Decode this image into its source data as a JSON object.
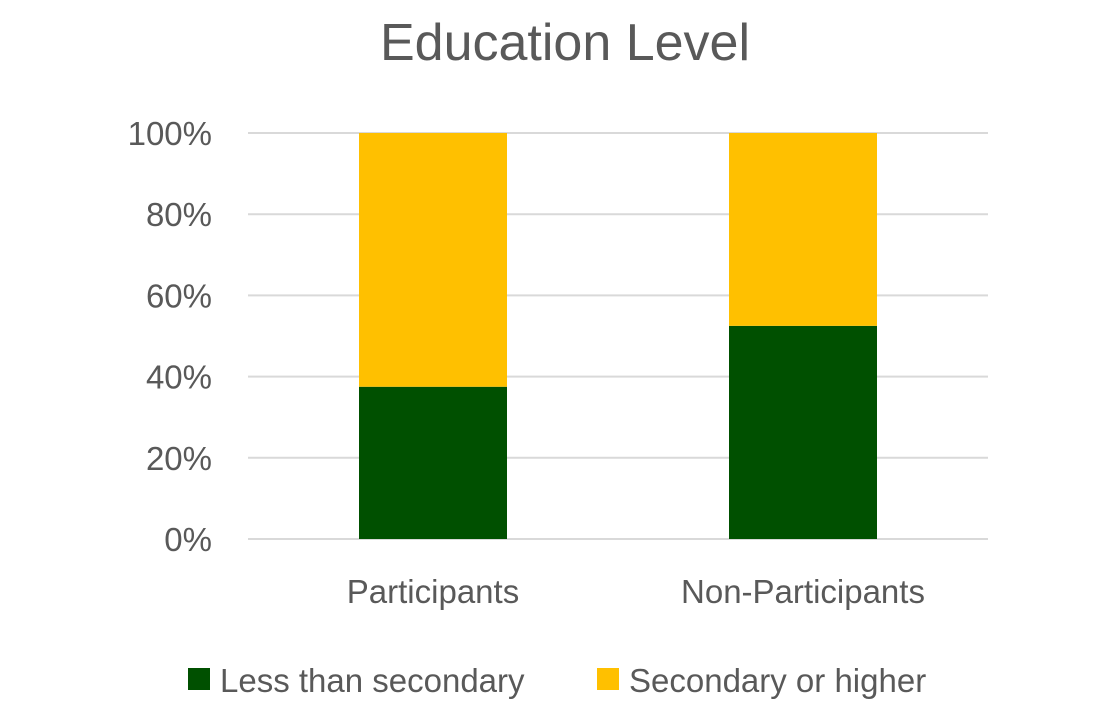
{
  "chart_data": {
    "type": "bar",
    "stacked": true,
    "title": "Education Level",
    "xlabel": "",
    "ylabel": "",
    "categories": [
      "Participants",
      "Non-Participants"
    ],
    "series": [
      {
        "name": "Less than secondary",
        "values": [
          37.5,
          52.5
        ],
        "color": "#005000"
      },
      {
        "name": "Secondary or higher",
        "values": [
          62.5,
          47.5
        ],
        "color": "#ffc000"
      }
    ],
    "ylim": [
      0,
      100
    ],
    "yticks": [
      "0%",
      "20%",
      "40%",
      "60%",
      "80%",
      "100%"
    ],
    "grid": true,
    "legend": "bottom"
  }
}
